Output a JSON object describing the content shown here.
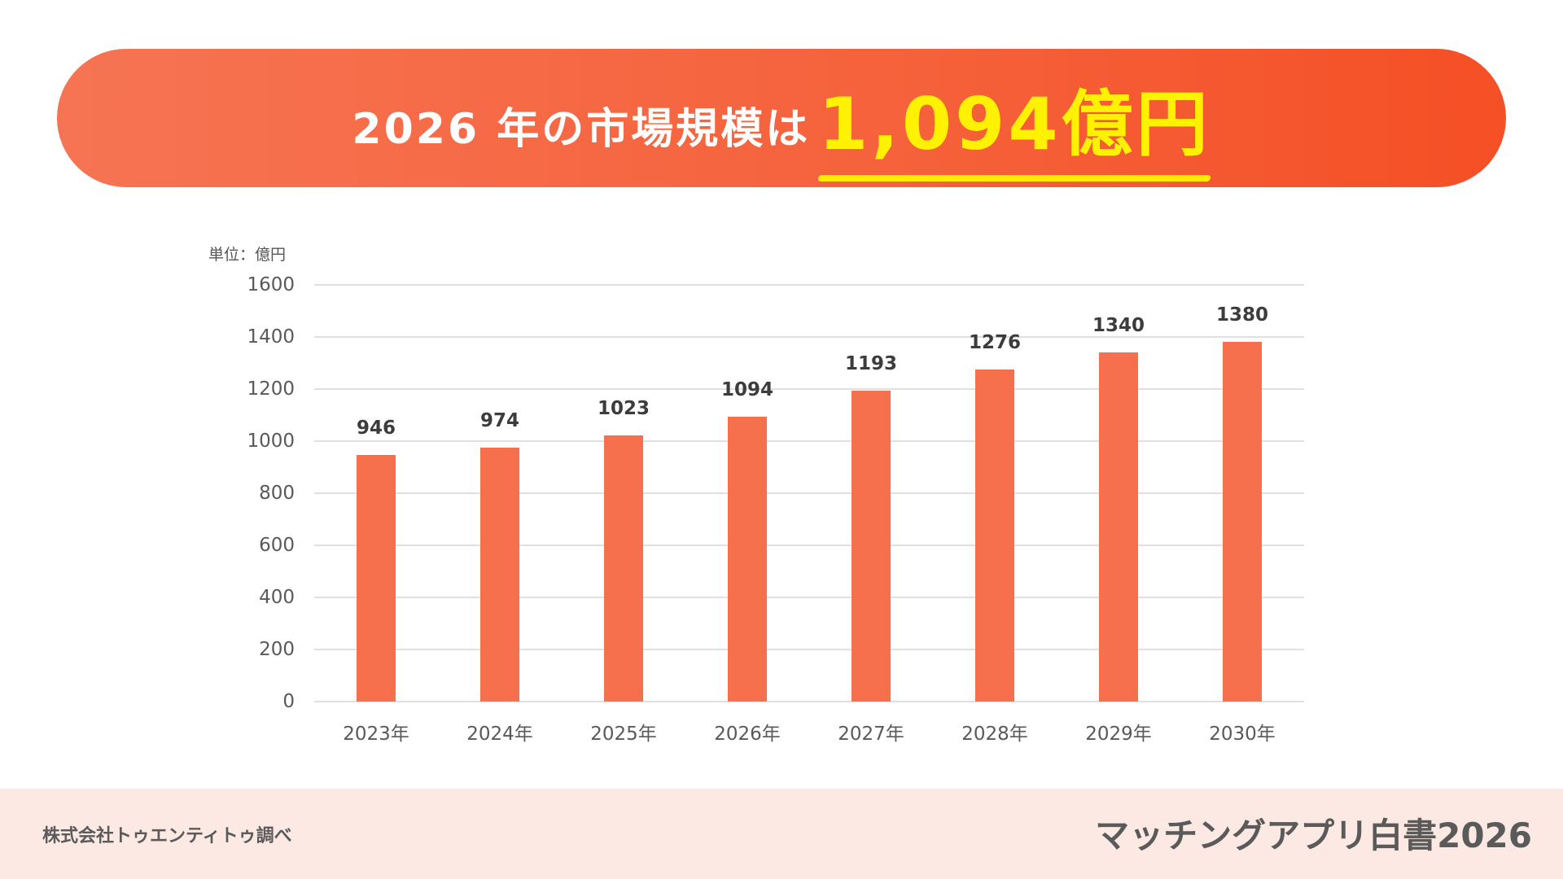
{
  "banner": {
    "title_prefix": "2026 年の市場規模は",
    "title_highlight": "1,094億円",
    "gradient_start": "#f67453",
    "gradient_end": "#f54f25",
    "highlight_color": "#fff200"
  },
  "chart": {
    "unit_label": "単位：億円",
    "bar_color": "#f6704e"
  },
  "chart_data": {
    "type": "bar",
    "title": "2026 年の市場規模は1,094億円",
    "xlabel": "",
    "ylabel": "単位：億円",
    "categories": [
      "2023年",
      "2024年",
      "2025年",
      "2026年",
      "2027年",
      "2028年",
      "2029年",
      "2030年"
    ],
    "values": [
      946,
      974,
      1023,
      1094,
      1193,
      1276,
      1340,
      1380
    ],
    "ylim": [
      0,
      1600
    ],
    "yticks": [
      0,
      200,
      400,
      600,
      800,
      1000,
      1200,
      1400,
      1600
    ],
    "grid": true,
    "legend": null,
    "data_labels": true
  },
  "footer": {
    "source": "株式会社トゥエンティトゥ調べ",
    "publication": "マッチングアプリ白書2026"
  }
}
